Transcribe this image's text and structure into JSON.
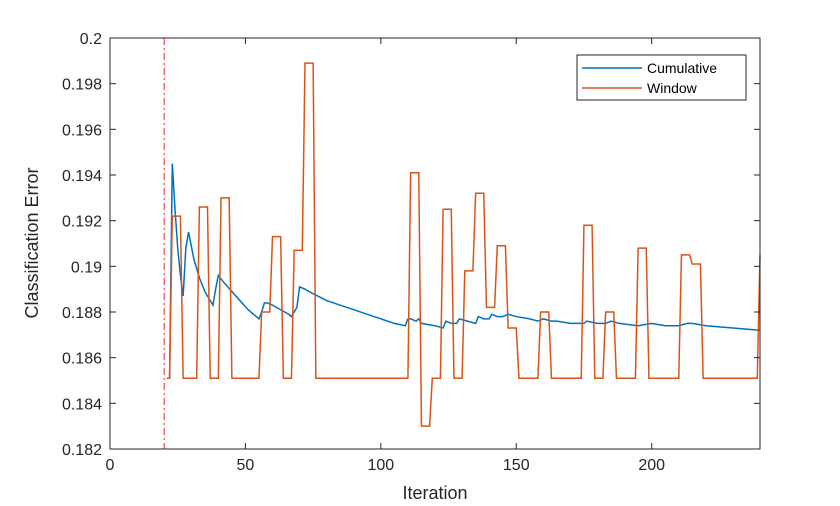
{
  "chart_data": {
    "type": "line",
    "xlabel": "Iteration",
    "ylabel": "Classification Error",
    "xlim": [
      0,
      240
    ],
    "ylim": [
      0.182,
      0.2
    ],
    "xticks": [
      0,
      50,
      100,
      150,
      200
    ],
    "xtick_labels": [
      "0",
      "50",
      "100",
      "150",
      "200"
    ],
    "yticks": [
      0.182,
      0.184,
      0.186,
      0.188,
      0.19,
      0.192,
      0.194,
      0.196,
      0.198,
      0.2
    ],
    "ytick_labels": [
      "0.182",
      "0.184",
      "0.186",
      "0.188",
      "0.19",
      "0.192",
      "0.194",
      "0.196",
      "0.198",
      "0.2"
    ],
    "grid": false,
    "legend_position": "top-right",
    "reference_line": {
      "x": 20,
      "color": "#e8262b",
      "style": "dash-dot"
    },
    "series": [
      {
        "name": "Cumulative",
        "color": "#0072bd",
        "points": [
          [
            21,
            0.1851
          ],
          [
            22,
            0.1851
          ],
          [
            23,
            0.1945
          ],
          [
            24,
            0.1925
          ],
          [
            25,
            0.1908
          ],
          [
            26,
            0.1896
          ],
          [
            27,
            0.1887
          ],
          [
            28,
            0.1908
          ],
          [
            29,
            0.1915
          ],
          [
            30,
            0.1909
          ],
          [
            31,
            0.1903
          ],
          [
            32,
            0.1899
          ],
          [
            33,
            0.1895
          ],
          [
            35,
            0.1889
          ],
          [
            37,
            0.1885
          ],
          [
            38,
            0.1883
          ],
          [
            39,
            0.189
          ],
          [
            40,
            0.1896
          ],
          [
            42,
            0.1893
          ],
          [
            45,
            0.1889
          ],
          [
            48,
            0.1885
          ],
          [
            51,
            0.1881
          ],
          [
            53,
            0.1879
          ],
          [
            55,
            0.1877
          ],
          [
            56,
            0.188
          ],
          [
            57,
            0.1884
          ],
          [
            58,
            0.1884
          ],
          [
            60,
            0.1883
          ],
          [
            63,
            0.1881
          ],
          [
            66,
            0.1879
          ],
          [
            67,
            0.1878
          ],
          [
            68,
            0.188
          ],
          [
            69,
            0.1882
          ],
          [
            70,
            0.1891
          ],
          [
            72,
            0.189
          ],
          [
            75,
            0.1888
          ],
          [
            80,
            0.1885
          ],
          [
            85,
            0.1883
          ],
          [
            90,
            0.1881
          ],
          [
            95,
            0.1879
          ],
          [
            100,
            0.1877
          ],
          [
            105,
            0.1875
          ],
          [
            109,
            0.1874
          ],
          [
            110,
            0.1877
          ],
          [
            111,
            0.1877
          ],
          [
            113,
            0.1876
          ],
          [
            114,
            0.1877
          ],
          [
            115,
            0.1875
          ],
          [
            120,
            0.1874
          ],
          [
            123,
            0.1873
          ],
          [
            124,
            0.1876
          ],
          [
            126,
            0.1875
          ],
          [
            128,
            0.1875
          ],
          [
            129,
            0.1877
          ],
          [
            132,
            0.1876
          ],
          [
            135,
            0.1875
          ],
          [
            136,
            0.1878
          ],
          [
            138,
            0.1877
          ],
          [
            140,
            0.1877
          ],
          [
            141,
            0.1879
          ],
          [
            143,
            0.1878
          ],
          [
            145,
            0.1878
          ],
          [
            147,
            0.1879
          ],
          [
            150,
            0.1878
          ],
          [
            155,
            0.1877
          ],
          [
            158,
            0.1876
          ],
          [
            160,
            0.1877
          ],
          [
            163,
            0.1876
          ],
          [
            165,
            0.1876
          ],
          [
            170,
            0.1875
          ],
          [
            175,
            0.1875
          ],
          [
            176,
            0.1876
          ],
          [
            180,
            0.1875
          ],
          [
            183,
            0.1875
          ],
          [
            185,
            0.1876
          ],
          [
            188,
            0.1875
          ],
          [
            195,
            0.1874
          ],
          [
            200,
            0.1875
          ],
          [
            205,
            0.1874
          ],
          [
            210,
            0.1874
          ],
          [
            213,
            0.1875
          ],
          [
            215,
            0.1875
          ],
          [
            220,
            0.1874
          ],
          [
            230,
            0.1873
          ],
          [
            240,
            0.1872
          ]
        ]
      },
      {
        "name": "Window",
        "color": "#d95319",
        "points": [
          [
            21,
            0.1851
          ],
          [
            22,
            0.1851
          ],
          [
            23,
            0.1922
          ],
          [
            26,
            0.1922
          ],
          [
            27,
            0.1851
          ],
          [
            32,
            0.1851
          ],
          [
            33,
            0.1926
          ],
          [
            36,
            0.1926
          ],
          [
            37,
            0.1851
          ],
          [
            40,
            0.1851
          ],
          [
            41,
            0.193
          ],
          [
            44,
            0.193
          ],
          [
            45,
            0.1851
          ],
          [
            55,
            0.1851
          ],
          [
            56,
            0.188
          ],
          [
            59,
            0.188
          ],
          [
            60,
            0.1913
          ],
          [
            63,
            0.1913
          ],
          [
            64,
            0.1851
          ],
          [
            67,
            0.1851
          ],
          [
            68,
            0.1907
          ],
          [
            71,
            0.1907
          ],
          [
            72,
            0.1989
          ],
          [
            75,
            0.1989
          ],
          [
            76,
            0.1851
          ],
          [
            110,
            0.1851
          ],
          [
            111,
            0.1941
          ],
          [
            114,
            0.1941
          ],
          [
            115,
            0.183
          ],
          [
            118,
            0.183
          ],
          [
            119,
            0.1851
          ],
          [
            122,
            0.1851
          ],
          [
            123,
            0.1925
          ],
          [
            126,
            0.1925
          ],
          [
            127,
            0.1851
          ],
          [
            130,
            0.1851
          ],
          [
            131,
            0.1898
          ],
          [
            134,
            0.1898
          ],
          [
            135,
            0.1932
          ],
          [
            138,
            0.1932
          ],
          [
            139,
            0.1882
          ],
          [
            142,
            0.1882
          ],
          [
            143,
            0.1909
          ],
          [
            146,
            0.1909
          ],
          [
            147,
            0.1873
          ],
          [
            150,
            0.1873
          ],
          [
            151,
            0.1851
          ],
          [
            158,
            0.1851
          ],
          [
            159,
            0.188
          ],
          [
            162,
            0.188
          ],
          [
            163,
            0.1851
          ],
          [
            174,
            0.1851
          ],
          [
            175,
            0.1918
          ],
          [
            178,
            0.1918
          ],
          [
            179,
            0.1851
          ],
          [
            182,
            0.1851
          ],
          [
            183,
            0.188
          ],
          [
            186,
            0.188
          ],
          [
            187,
            0.1851
          ],
          [
            194,
            0.1851
          ],
          [
            195,
            0.1908
          ],
          [
            198,
            0.1908
          ],
          [
            199,
            0.1851
          ],
          [
            210,
            0.1851
          ],
          [
            211,
            0.1905
          ],
          [
            214,
            0.1905
          ],
          [
            215,
            0.1901
          ],
          [
            218,
            0.1901
          ],
          [
            219,
            0.1851
          ],
          [
            239,
            0.1851
          ],
          [
            240,
            0.1905
          ]
        ]
      }
    ]
  }
}
